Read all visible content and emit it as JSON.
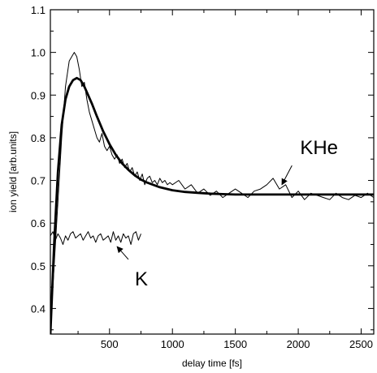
{
  "chart_data": {
    "type": "line",
    "xlabel": "delay time  [fs]",
    "ylabel": "ion yield  [arb.units]",
    "xlim": [
      30,
      2600
    ],
    "ylim": [
      0.34,
      1.1
    ],
    "xticks": [
      500,
      1000,
      1500,
      2000,
      2500
    ],
    "xtick_labels": [
      "500",
      "1000",
      "1500",
      "2000",
      "2500"
    ],
    "yticks": [
      0.4,
      0.5,
      0.6,
      0.7,
      0.8,
      0.9,
      1.0,
      1.1
    ],
    "ytick_labels": [
      "0.4",
      "0.5",
      "0.6",
      "0.7",
      "0.8",
      "0.9",
      "1.0",
      "1.1"
    ],
    "grid": false,
    "colors": {
      "line": "#000000",
      "background": "#ffffff"
    },
    "series": [
      {
        "style": "thin",
        "x": [
          30,
          60,
          90,
          120,
          150,
          180,
          200,
          220,
          240,
          260,
          280,
          300,
          320,
          340,
          360,
          380,
          400,
          420,
          440,
          460,
          480,
          500,
          520,
          540,
          560,
          580,
          600,
          620,
          640,
          660,
          680,
          700,
          720,
          740,
          760,
          780,
          800,
          820,
          840,
          860,
          880,
          900,
          920,
          940,
          960,
          980,
          1000,
          1050,
          1100,
          1150,
          1200,
          1250,
          1300,
          1350,
          1400,
          1450,
          1500,
          1550,
          1600,
          1650,
          1700,
          1750,
          1800,
          1850,
          1900,
          1950,
          2000,
          2050,
          2100,
          2150,
          2200,
          2250,
          2300,
          2350,
          2400,
          2450,
          2500,
          2550,
          2600
        ],
        "y": [
          0.35,
          0.5,
          0.65,
          0.8,
          0.92,
          0.98,
          0.99,
          1.0,
          0.99,
          0.96,
          0.92,
          0.93,
          0.89,
          0.86,
          0.84,
          0.82,
          0.8,
          0.79,
          0.81,
          0.78,
          0.77,
          0.78,
          0.76,
          0.75,
          0.76,
          0.74,
          0.75,
          0.73,
          0.74,
          0.72,
          0.73,
          0.71,
          0.72,
          0.7,
          0.715,
          0.69,
          0.705,
          0.71,
          0.695,
          0.7,
          0.69,
          0.705,
          0.695,
          0.7,
          0.69,
          0.695,
          0.69,
          0.7,
          0.68,
          0.69,
          0.67,
          0.68,
          0.665,
          0.675,
          0.66,
          0.67,
          0.68,
          0.67,
          0.66,
          0.675,
          0.68,
          0.69,
          0.705,
          0.68,
          0.69,
          0.66,
          0.675,
          0.655,
          0.67,
          0.665,
          0.66,
          0.655,
          0.67,
          0.66,
          0.655,
          0.665,
          0.66,
          0.67,
          0.66
        ]
      },
      {
        "style": "thick",
        "x": [
          30,
          60,
          90,
          120,
          150,
          180,
          210,
          240,
          270,
          300,
          330,
          360,
          400,
          450,
          500,
          550,
          600,
          650,
          700,
          750,
          800,
          900,
          1000,
          1100,
          1200,
          1300,
          1400,
          1500,
          1600,
          1800,
          2000,
          2200,
          2400,
          2600
        ],
        "y": [
          0.34,
          0.55,
          0.72,
          0.83,
          0.89,
          0.92,
          0.935,
          0.94,
          0.935,
          0.92,
          0.9,
          0.88,
          0.85,
          0.815,
          0.785,
          0.76,
          0.74,
          0.725,
          0.712,
          0.702,
          0.695,
          0.684,
          0.677,
          0.673,
          0.671,
          0.669,
          0.668,
          0.667,
          0.667,
          0.667,
          0.667,
          0.667,
          0.667,
          0.667
        ]
      },
      {
        "style": "thin",
        "x": [
          30,
          50,
          70,
          90,
          110,
          130,
          150,
          170,
          190,
          210,
          230,
          250,
          270,
          290,
          310,
          330,
          350,
          370,
          390,
          410,
          430,
          450,
          470,
          490,
          510,
          530,
          550,
          570,
          590,
          610,
          630,
          650,
          670,
          690,
          710,
          730,
          750
        ],
        "y": [
          0.57,
          0.58,
          0.56,
          0.575,
          0.565,
          0.55,
          0.57,
          0.56,
          0.575,
          0.58,
          0.565,
          0.57,
          0.575,
          0.56,
          0.57,
          0.58,
          0.565,
          0.57,
          0.555,
          0.57,
          0.575,
          0.56,
          0.565,
          0.57,
          0.555,
          0.58,
          0.56,
          0.57,
          0.555,
          0.575,
          0.565,
          0.57,
          0.55,
          0.575,
          0.58,
          0.56,
          0.575
        ]
      }
    ],
    "annotations": [
      {
        "text": "KHe",
        "arrow_from": [
          1950,
          0.735
        ],
        "arrow_to": [
          1870,
          0.69
        ]
      },
      {
        "text": "K",
        "arrow_from": [
          650,
          0.515
        ],
        "arrow_to": [
          560,
          0.545
        ]
      }
    ]
  }
}
